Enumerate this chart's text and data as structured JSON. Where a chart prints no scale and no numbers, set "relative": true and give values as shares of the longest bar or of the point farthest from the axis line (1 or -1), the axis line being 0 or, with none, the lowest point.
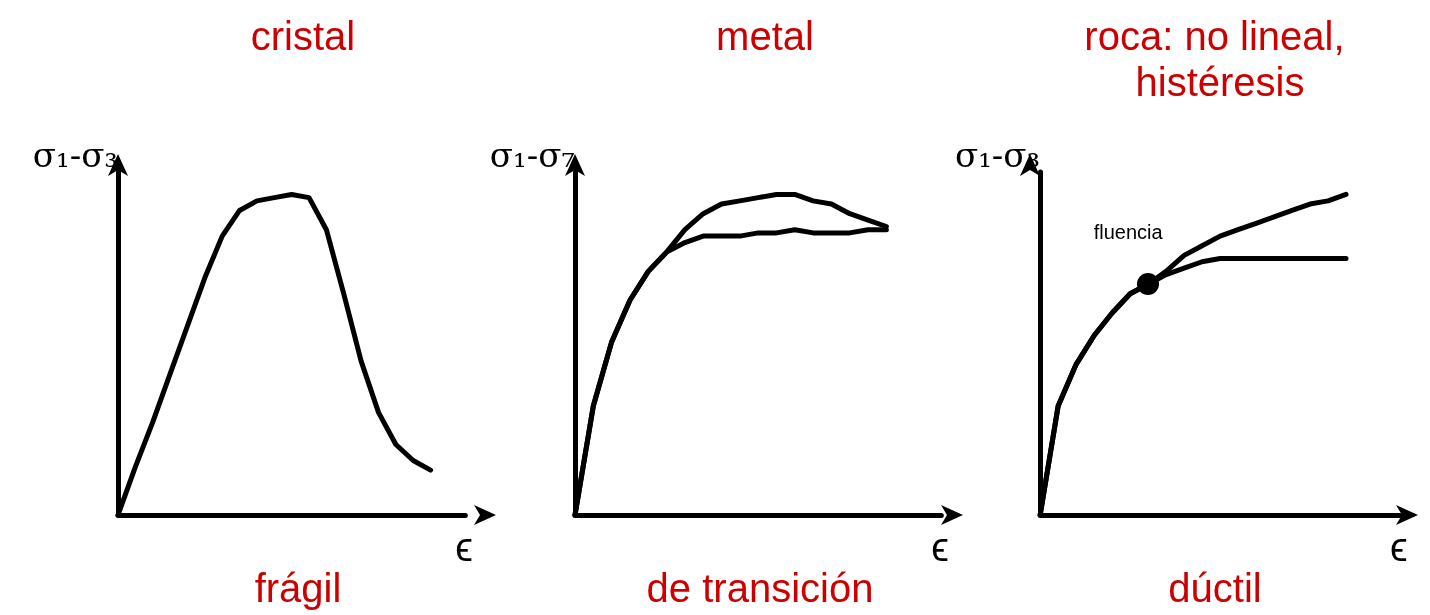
{
  "chart_data": [
    {
      "type": "line",
      "relative": true,
      "title": "cristal",
      "xlabel": "ϵ",
      "ylabel": "σ₁-σ₃",
      "grid": false,
      "marker": "none",
      "line_style": "solid",
      "annotations": [
        "frágil"
      ],
      "categories": [
        null,
        null,
        null,
        null,
        null,
        null,
        null,
        null,
        null,
        null,
        null,
        null,
        null,
        null,
        null,
        null,
        null,
        null,
        null,
        null,
        null
      ],
      "series": [
        {
          "color": "#000000",
          "values": [
            0,
            0.15,
            0.29,
            0.44,
            0.59,
            0.74,
            0.87,
            0.95,
            0.98,
            0.99,
            1,
            0.99,
            0.89,
            0.69,
            0.48,
            0.32,
            0.22,
            0.17,
            0.14,
            null,
            null
          ]
        }
      ]
    },
    {
      "type": "line",
      "relative": true,
      "title": "metal",
      "xlabel": "ϵ",
      "ylabel": "σ₁-σ₇",
      "grid": false,
      "marker": "none",
      "line_style": "solid",
      "annotations": [
        "de transición"
      ],
      "categories": [
        null,
        null,
        null,
        null,
        null,
        null,
        null,
        null,
        null,
        null,
        null,
        null,
        null,
        null,
        null,
        null,
        null,
        null,
        null,
        null,
        null
      ],
      "series": [
        {
          "color": "#000000",
          "values": [
            0,
            0.34,
            0.54,
            0.67,
            0.76,
            0.82,
            0.89,
            0.94,
            0.97,
            0.98,
            0.99,
            1,
            1,
            0.98,
            0.97,
            0.94,
            0.92,
            0.9,
            null,
            null,
            null
          ]
        },
        {
          "color": "#000000",
          "values": [
            0,
            0.34,
            0.54,
            0.67,
            0.76,
            0.82,
            0.85,
            0.87,
            0.87,
            0.87,
            0.88,
            0.88,
            0.89,
            0.88,
            0.88,
            0.88,
            0.89,
            0.89,
            null,
            null,
            null
          ]
        }
      ]
    },
    {
      "type": "line",
      "relative": true,
      "title": "roca: no lineal, histéresis",
      "xlabel": "ϵ",
      "ylabel": "σ₁-σ₃",
      "grid": false,
      "marker": "none",
      "line_style": "solid",
      "annotations": [
        "dúctil",
        {
          "text": "fluencia"
        }
      ],
      "categories": [
        null,
        null,
        null,
        null,
        null,
        null,
        null,
        null,
        null,
        null,
        null,
        null,
        null,
        null,
        null,
        null,
        null,
        null,
        null,
        null,
        null
      ],
      "series": [
        {
          "color": "#000000",
          "values": [
            0,
            0.34,
            0.47,
            0.56,
            0.63,
            0.69,
            0.72,
            0.76,
            0.81,
            0.84,
            0.87,
            0.89,
            0.91,
            0.93,
            0.95,
            0.97,
            0.98,
            1,
            null,
            null,
            null
          ]
        },
        {
          "color": "#000000",
          "values": [
            0,
            0.34,
            0.47,
            0.56,
            0.63,
            0.69,
            0.72,
            0.75,
            0.77,
            0.79,
            0.8,
            0.8,
            0.8,
            0.8,
            0.8,
            0.8,
            0.8,
            0.8,
            null,
            null,
            null
          ]
        }
      ]
    }
  ]
}
